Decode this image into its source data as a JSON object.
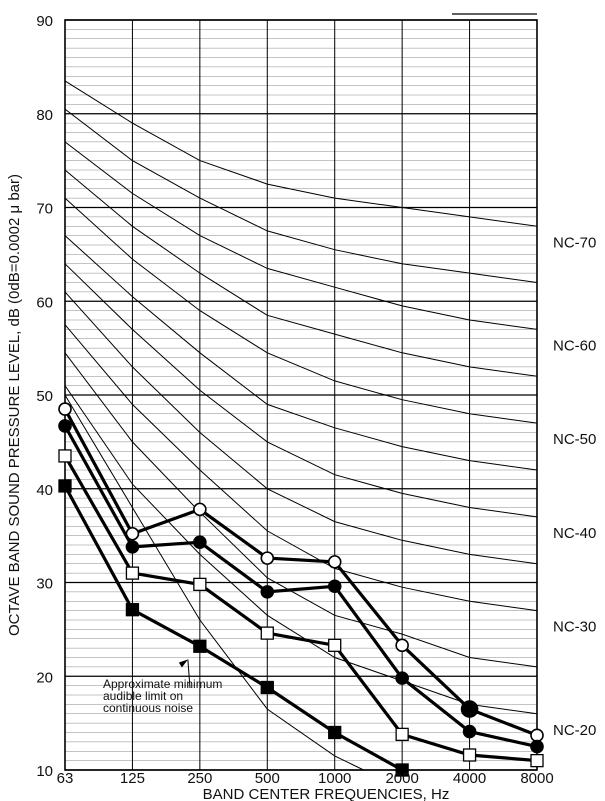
{
  "chart_data": {
    "type": "line",
    "title": "",
    "xlabel": "BAND CENTER FREQUENCIES, Hz",
    "ylabel": "OCTAVE BAND SOUND PRESSURE LEVEL, dB (0dB=0.0002 μ bar)",
    "x": [
      "63",
      "125",
      "250",
      "500",
      "1000",
      "2000",
      "4000",
      "8000"
    ],
    "y_ticks": [
      "10",
      "20",
      "30",
      "40",
      "50",
      "60",
      "70",
      "80",
      "90"
    ],
    "ylim": [
      10,
      90
    ],
    "grid": {
      "major_y_step": 10,
      "minor_y_step": 1,
      "vertical": true
    },
    "nc_curves": [
      {
        "label": "NC-70",
        "values": [
          83.5,
          79.0,
          75.0,
          72.5,
          71.0,
          70.0,
          69.0,
          68.0
        ]
      },
      {
        "label": "",
        "values": [
          80.5,
          75.0,
          71.0,
          67.5,
          65.5,
          64.0,
          63.0,
          62.0
        ]
      },
      {
        "label": "NC-60",
        "values": [
          77.0,
          71.5,
          67.0,
          63.5,
          61.5,
          59.5,
          58.0,
          57.0
        ]
      },
      {
        "label": "",
        "values": [
          74.0,
          68.0,
          63.0,
          58.5,
          56.5,
          54.5,
          53.0,
          52.0
        ]
      },
      {
        "label": "NC-50",
        "values": [
          71.0,
          64.5,
          59.0,
          54.5,
          51.5,
          49.5,
          48.0,
          47.0
        ]
      },
      {
        "label": "",
        "values": [
          67.0,
          60.5,
          54.5,
          49.0,
          46.5,
          44.5,
          43.0,
          42.0
        ]
      },
      {
        "label": "NC-40",
        "values": [
          64.0,
          57.0,
          50.5,
          45.0,
          41.5,
          39.5,
          38.0,
          37.0
        ]
      },
      {
        "label": "",
        "values": [
          61.0,
          53.0,
          46.0,
          40.0,
          36.5,
          34.5,
          33.0,
          32.0
        ]
      },
      {
        "label": "NC-30",
        "values": [
          57.5,
          49.0,
          42.0,
          35.5,
          31.5,
          29.5,
          28.0,
          27.0
        ]
      },
      {
        "label": "",
        "values": [
          54.5,
          45.0,
          37.5,
          30.5,
          26.5,
          24.5,
          22.0,
          21.0
        ]
      },
      {
        "label": "NC-20",
        "values": [
          51.0,
          40.5,
          33.0,
          26.5,
          22.0,
          19.5,
          17.0,
          16.0
        ]
      }
    ],
    "threshold_curve": {
      "values": [
        50.0,
        38.0,
        26.0,
        16.5,
        11.5,
        8.0,
        null,
        null
      ]
    },
    "annotation": {
      "lines": [
        "Approximate minimum",
        "audible limit on",
        "continuous noise"
      ],
      "points_to": {
        "x": "250",
        "y": 22.0
      }
    },
    "series": [
      {
        "marker": "open-circle",
        "values": [
          48.5,
          35.2,
          37.8,
          32.6,
          32.2,
          23.3,
          16.5,
          13.7
        ]
      },
      {
        "marker": "filled-circle",
        "values": [
          46.7,
          33.8,
          34.3,
          29.0,
          29.6,
          19.8,
          14.1,
          12.5
        ]
      },
      {
        "marker": "open-square",
        "values": [
          43.5,
          31.0,
          29.8,
          24.6,
          23.3,
          13.8,
          11.6,
          11.0
        ]
      },
      {
        "marker": "filled-square",
        "values": [
          40.3,
          27.1,
          23.2,
          18.8,
          14.0,
          10.0,
          null,
          null
        ]
      }
    ],
    "large_marker": {
      "x": "4000",
      "y": 16.5
    }
  }
}
